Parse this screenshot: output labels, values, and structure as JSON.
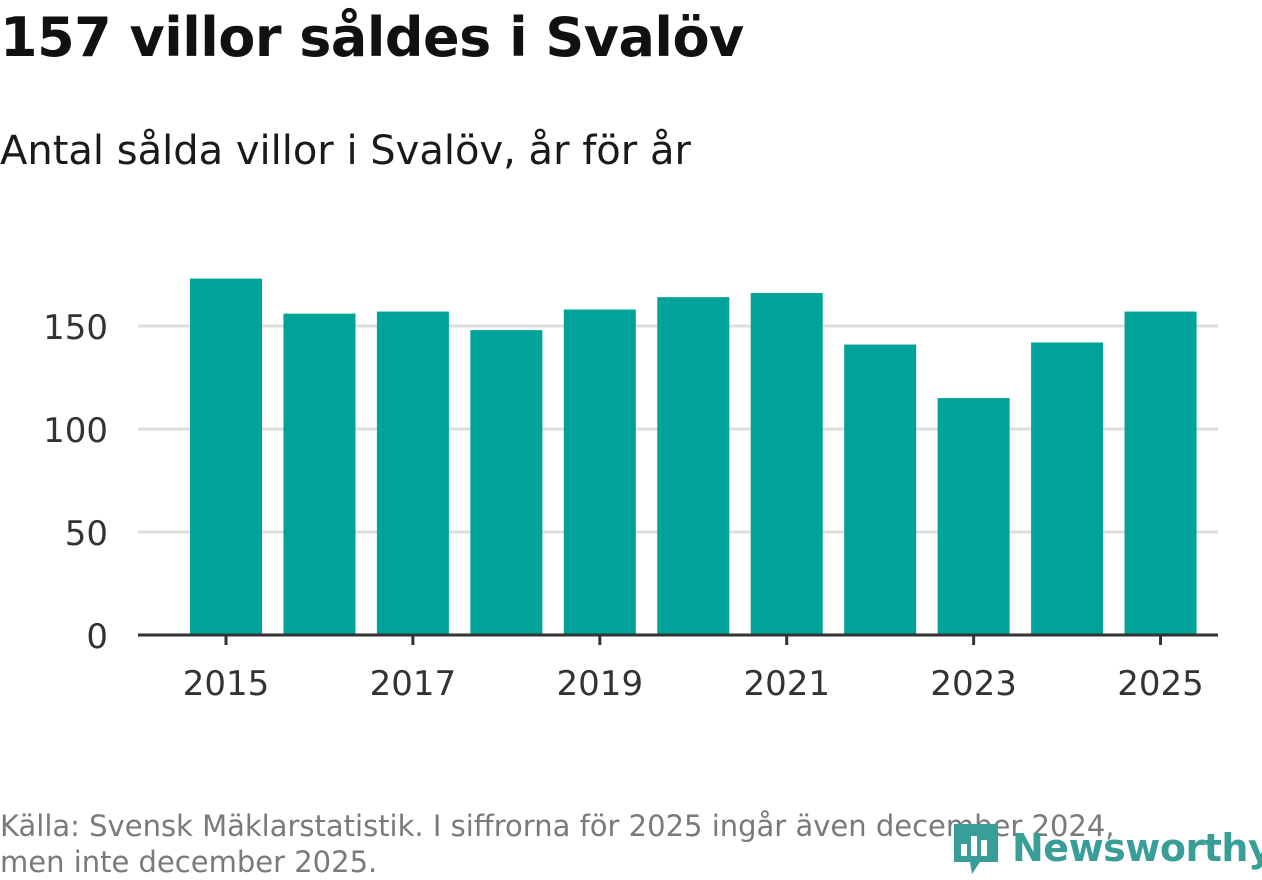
{
  "title": "157 villor såldes i Svalöv",
  "subtitle": "Antal sålda villor i Svalöv, år för år",
  "source": {
    "line1": "Källa: Svensk Mäklarstatistik. I siffrorna för 2025 ingår även december 2024,",
    "line2": "men inte december 2025."
  },
  "logo": {
    "text": "Newsworthy"
  },
  "colors": {
    "bar": "#00a39a",
    "grid": "#dddddd",
    "axis": "#333333",
    "logo": "#3a9e98",
    "source": "#7a7a7a"
  },
  "chart_data": {
    "type": "bar",
    "title": "157 villor såldes i Svalöv",
    "subtitle": "Antal sålda villor i Svalöv, år för år",
    "xlabel": "",
    "ylabel": "",
    "categories": [
      "2015",
      "2016",
      "2017",
      "2018",
      "2019",
      "2020",
      "2021",
      "2022",
      "2023",
      "2024",
      "2025"
    ],
    "values": [
      173,
      156,
      157,
      148,
      158,
      164,
      166,
      141,
      115,
      142,
      157
    ],
    "ylim": [
      0,
      180
    ],
    "yticks": [
      0,
      50,
      100,
      150
    ],
    "xtick_labels": [
      "2015",
      "2017",
      "2019",
      "2021",
      "2023",
      "2025"
    ],
    "grid": true,
    "legend": "none"
  }
}
